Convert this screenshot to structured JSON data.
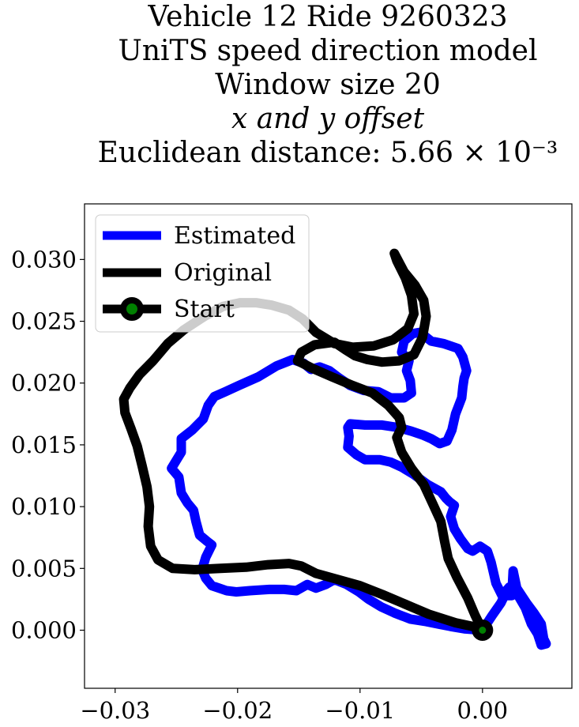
{
  "chart_data": {
    "type": "line",
    "title_lines": [
      "Vehicle 12 Ride 9260323",
      "UniTS speed direction model",
      "Window size 20",
      "x and y offset",
      "Euclidean distance: 5.66 × 10⁻³"
    ],
    "xlabel": "",
    "ylabel": "",
    "xlim": [
      -0.0325,
      0.0073
    ],
    "ylim": [
      -0.0047,
      0.0345
    ],
    "xticks": [
      -0.03,
      -0.02,
      -0.01,
      0.0
    ],
    "xtick_labels": [
      "−0.03",
      "−0.02",
      "−0.01",
      "0.00"
    ],
    "yticks": [
      0.0,
      0.005,
      0.01,
      0.015,
      0.02,
      0.025,
      0.03
    ],
    "ytick_labels": [
      "0.000",
      "0.005",
      "0.010",
      "0.015",
      "0.020",
      "0.025",
      "0.030"
    ],
    "grid": false,
    "legend_position": "top-left",
    "series": [
      {
        "name": "Estimated",
        "color": "#0000ff",
        "points": [
          [
            0.0,
            0.0
          ],
          [
            0.0008,
            0.0012
          ],
          [
            0.0015,
            0.0022
          ],
          [
            0.0018,
            0.0028
          ],
          [
            0.0024,
            0.0028
          ],
          [
            0.0025,
            0.0048
          ],
          [
            0.0028,
            0.0034
          ],
          [
            0.0036,
            0.0022
          ],
          [
            0.0042,
            0.0014
          ],
          [
            0.0048,
            0.0005
          ],
          [
            0.005,
            -0.0007
          ],
          [
            0.0052,
            -0.0011
          ],
          [
            0.0048,
            -0.0012
          ],
          [
            0.0045,
            -0.0003
          ],
          [
            0.004,
            0.0005
          ],
          [
            0.0035,
            0.0018
          ],
          [
            0.0028,
            0.003
          ],
          [
            0.0022,
            0.0035
          ],
          [
            0.0016,
            0.0028
          ],
          [
            0.0011,
            0.0038
          ],
          [
            0.0007,
            0.0055
          ],
          [
            0.0004,
            0.0064
          ],
          [
            -0.0002,
            0.0068
          ],
          [
            -0.0008,
            0.0064
          ],
          [
            -0.0012,
            0.0066
          ],
          [
            -0.0018,
            0.0074
          ],
          [
            -0.0023,
            0.0082
          ],
          [
            -0.0026,
            0.0092
          ],
          [
            -0.0023,
            0.0101
          ],
          [
            -0.0027,
            0.0104
          ],
          [
            -0.003,
            0.0107
          ],
          [
            -0.0034,
            0.0112
          ],
          [
            -0.0045,
            0.0118
          ],
          [
            -0.0056,
            0.0126
          ],
          [
            -0.0066,
            0.0132
          ],
          [
            -0.0075,
            0.0136
          ],
          [
            -0.0084,
            0.0138
          ],
          [
            -0.0096,
            0.0138
          ],
          [
            -0.0103,
            0.0142
          ],
          [
            -0.011,
            0.0148
          ],
          [
            -0.0109,
            0.0157
          ],
          [
            -0.011,
            0.0164
          ],
          [
            -0.0108,
            0.0167
          ],
          [
            -0.0096,
            0.0166
          ],
          [
            -0.0082,
            0.0166
          ],
          [
            -0.0069,
            0.0164
          ],
          [
            -0.0058,
            0.0161
          ],
          [
            -0.0049,
            0.0158
          ],
          [
            -0.0042,
            0.0155
          ],
          [
            -0.0035,
            0.0151
          ],
          [
            -0.0029,
            0.0153
          ],
          [
            -0.0025,
            0.0162
          ],
          [
            -0.0022,
            0.0175
          ],
          [
            -0.0017,
            0.0188
          ],
          [
            -0.0016,
            0.0197
          ],
          [
            -0.0015,
            0.0204
          ],
          [
            -0.0013,
            0.021
          ],
          [
            -0.0016,
            0.0221
          ],
          [
            -0.002,
            0.0228
          ],
          [
            -0.0032,
            0.0232
          ],
          [
            -0.0042,
            0.0234
          ],
          [
            -0.0051,
            0.0241
          ],
          [
            -0.0057,
            0.024
          ],
          [
            -0.0064,
            0.0234
          ],
          [
            -0.0066,
            0.0225
          ],
          [
            -0.006,
            0.0218
          ],
          [
            -0.0062,
            0.021
          ],
          [
            -0.0059,
            0.0202
          ],
          [
            -0.0058,
            0.0192
          ],
          [
            -0.0064,
            0.0188
          ],
          [
            -0.0075,
            0.0188
          ],
          [
            -0.0085,
            0.0193
          ],
          [
            -0.0097,
            0.0194
          ],
          [
            -0.0108,
            0.0198
          ],
          [
            -0.0117,
            0.0204
          ],
          [
            -0.0125,
            0.021
          ],
          [
            -0.0133,
            0.0213
          ],
          [
            -0.014,
            0.0211
          ],
          [
            -0.0146,
            0.0216
          ],
          [
            -0.0155,
            0.0219
          ],
          [
            -0.0168,
            0.0214
          ],
          [
            -0.0183,
            0.0205
          ],
          [
            -0.0199,
            0.0198
          ],
          [
            -0.021,
            0.0193
          ],
          [
            -0.0219,
            0.0189
          ],
          [
            -0.0224,
            0.0182
          ],
          [
            -0.0228,
            0.0171
          ],
          [
            -0.0237,
            0.0162
          ],
          [
            -0.0246,
            0.0155
          ],
          [
            -0.0246,
            0.0144
          ],
          [
            -0.0254,
            0.0131
          ],
          [
            -0.0248,
            0.0124
          ],
          [
            -0.0246,
            0.0111
          ],
          [
            -0.0241,
            0.0103
          ],
          [
            -0.0236,
            0.0097
          ],
          [
            -0.0234,
            0.0088
          ],
          [
            -0.0231,
            0.0077
          ],
          [
            -0.0225,
            0.0072
          ],
          [
            -0.0221,
            0.0069
          ],
          [
            -0.0226,
            0.0059
          ],
          [
            -0.0229,
            0.0049
          ],
          [
            -0.0226,
            0.0042
          ],
          [
            -0.0221,
            0.0036
          ],
          [
            -0.0215,
            0.0034
          ],
          [
            -0.0209,
            0.0032
          ],
          [
            -0.0201,
            0.0031
          ],
          [
            -0.019,
            0.0032
          ],
          [
            -0.0174,
            0.0033
          ],
          [
            -0.0162,
            0.0033
          ],
          [
            -0.0152,
            0.0032
          ],
          [
            -0.0143,
            0.0037
          ],
          [
            -0.0136,
            0.0034
          ],
          [
            -0.0128,
            0.0037
          ],
          [
            -0.0121,
            0.0041
          ],
          [
            -0.0111,
            0.0037
          ],
          [
            -0.0101,
            0.0031
          ],
          [
            -0.0093,
            0.0025
          ],
          [
            -0.0083,
            0.0019
          ],
          [
            -0.0072,
            0.0014
          ],
          [
            -0.0059,
            0.0009
          ],
          [
            -0.0046,
            0.0007
          ],
          [
            -0.0036,
            0.0005
          ],
          [
            -0.0026,
            0.0003
          ],
          [
            -0.0014,
            0.0001
          ],
          [
            0.0,
            0.0
          ]
        ]
      },
      {
        "name": "Original",
        "color": "#000000",
        "points": [
          [
            0.0,
            0.0
          ],
          [
            -0.0006,
            0.0012
          ],
          [
            -0.0012,
            0.0026
          ],
          [
            -0.0021,
            0.0043
          ],
          [
            -0.0028,
            0.0058
          ],
          [
            -0.0031,
            0.0072
          ],
          [
            -0.0034,
            0.0088
          ],
          [
            -0.004,
            0.0101
          ],
          [
            -0.0048,
            0.0118
          ],
          [
            -0.0058,
            0.0131
          ],
          [
            -0.0066,
            0.0144
          ],
          [
            -0.007,
            0.0156
          ],
          [
            -0.0066,
            0.0164
          ],
          [
            -0.0068,
            0.0172
          ],
          [
            -0.0077,
            0.0182
          ],
          [
            -0.009,
            0.0192
          ],
          [
            -0.0106,
            0.0198
          ],
          [
            -0.0123,
            0.0205
          ],
          [
            -0.0139,
            0.0212
          ],
          [
            -0.0151,
            0.0218
          ],
          [
            -0.0148,
            0.0225
          ],
          [
            -0.0137,
            0.0231
          ],
          [
            -0.0121,
            0.0233
          ],
          [
            -0.0112,
            0.0227
          ],
          [
            -0.0104,
            0.0222
          ],
          [
            -0.0094,
            0.0219
          ],
          [
            -0.0082,
            0.0217
          ],
          [
            -0.0068,
            0.0218
          ],
          [
            -0.0056,
            0.0223
          ],
          [
            -0.0049,
            0.0237
          ],
          [
            -0.0046,
            0.0254
          ],
          [
            -0.0048,
            0.0267
          ],
          [
            -0.0055,
            0.0279
          ],
          [
            -0.0064,
            0.029
          ],
          [
            -0.0072,
            0.0305
          ],
          [
            -0.007,
            0.0299
          ],
          [
            -0.0063,
            0.0285
          ],
          [
            -0.0058,
            0.0271
          ],
          [
            -0.0056,
            0.0256
          ],
          [
            -0.0061,
            0.0244
          ],
          [
            -0.0073,
            0.0235
          ],
          [
            -0.0089,
            0.023
          ],
          [
            -0.0106,
            0.0229
          ],
          [
            -0.0121,
            0.0232
          ],
          [
            -0.0136,
            0.0241
          ],
          [
            -0.0147,
            0.0252
          ],
          [
            -0.0158,
            0.0259
          ],
          [
            -0.0172,
            0.0263
          ],
          [
            -0.0185,
            0.0265
          ],
          [
            -0.0198,
            0.0265
          ],
          [
            -0.0212,
            0.0262
          ],
          [
            -0.0227,
            0.0254
          ],
          [
            -0.0244,
            0.0243
          ],
          [
            -0.0257,
            0.0232
          ],
          [
            -0.0269,
            0.0218
          ],
          [
            -0.028,
            0.0207
          ],
          [
            -0.0288,
            0.0196
          ],
          [
            -0.0293,
            0.0187
          ],
          [
            -0.0292,
            0.0176
          ],
          [
            -0.0287,
            0.0163
          ],
          [
            -0.0282,
            0.0149
          ],
          [
            -0.0278,
            0.0133
          ],
          [
            -0.0274,
            0.0116
          ],
          [
            -0.0272,
            0.01
          ],
          [
            -0.0273,
            0.0084
          ],
          [
            -0.0271,
            0.0068
          ],
          [
            -0.0265,
            0.0057
          ],
          [
            -0.0253,
            0.005
          ],
          [
            -0.0235,
            0.0049
          ],
          [
            -0.0214,
            0.005
          ],
          [
            -0.0193,
            0.0051
          ],
          [
            -0.0175,
            0.0053
          ],
          [
            -0.0158,
            0.0054
          ],
          [
            -0.0148,
            0.0052
          ],
          [
            -0.0136,
            0.0046
          ],
          [
            -0.0118,
            0.0041
          ],
          [
            -0.01,
            0.0036
          ],
          [
            -0.0082,
            0.0029
          ],
          [
            -0.0063,
            0.0021
          ],
          [
            -0.0044,
            0.0013
          ],
          [
            -0.0022,
            0.0006
          ],
          [
            -0.0008,
            0.0003
          ],
          [
            0.0,
            0.0
          ]
        ]
      }
    ],
    "start_point": {
      "name": "Start",
      "x": 0.0,
      "y": 0.0,
      "fill_color": "#008000",
      "edge_color": "#000000"
    },
    "legend": [
      {
        "name": "Estimated",
        "color": "#0000ff"
      },
      {
        "name": "Original",
        "color": "#000000"
      },
      {
        "name": "Start",
        "color": "#000000",
        "marker_fill": "#008000"
      }
    ]
  }
}
